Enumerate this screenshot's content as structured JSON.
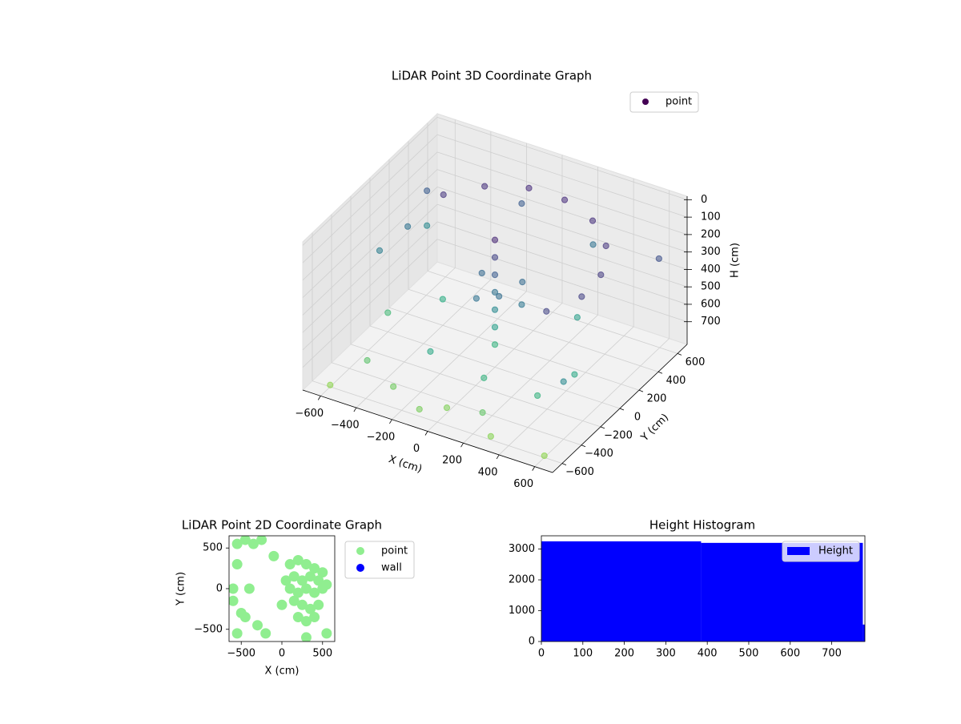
{
  "chart_data": [
    {
      "type": "scatter3d",
      "title": "LiDAR Point 3D Coordinate Graph",
      "xlabel": "X (cm)",
      "ylabel": "Y (cm)",
      "zlabel": "H (cm)",
      "xlim": [
        -700,
        700
      ],
      "ylim": [
        -700,
        700
      ],
      "zlim": [
        -20,
        830
      ],
      "z_inverted": true,
      "xticks": [
        {
          "value": -600,
          "label": "−600"
        },
        {
          "value": -400,
          "label": "−400"
        },
        {
          "value": -200,
          "label": "−200"
        },
        0,
        200,
        400,
        600
      ],
      "yticks": [
        {
          "value": -600,
          "label": "−600"
        },
        {
          "value": -400,
          "label": "−400"
        },
        {
          "value": -200,
          "label": "−200"
        },
        0,
        200,
        400,
        600
      ],
      "zticks": [
        0,
        100,
        200,
        300,
        400,
        500,
        600,
        700
      ],
      "grid": true,
      "legend": "upper right",
      "colormap": [
        "#440154",
        "#472d7b",
        "#3b528b",
        "#2c728e",
        "#21918c",
        "#28ae80",
        "#90d743"
      ],
      "series": [
        {
          "name": "point",
          "color": "#440154",
          "x": [
            -450,
            -300,
            -100,
            100,
            300,
            450,
            540,
            540,
            450,
            0,
            0,
            0,
            0,
            0,
            0,
            0,
            -100,
            50,
            100,
            -50,
            150,
            -500,
            -300,
            -100,
            200,
            400,
            500,
            -600,
            -400,
            300,
            -200,
            100,
            0,
            -600,
            600,
            300,
            -650,
            -650,
            -650,
            -700,
            650,
            600,
            -200,
            200
          ],
          "y": [
            300,
            450,
            540,
            540,
            460,
            320,
            100,
            -100,
            -300,
            0,
            0,
            0,
            0,
            0,
            0,
            0,
            50,
            -50,
            100,
            -100,
            0,
            -400,
            -500,
            -600,
            -500,
            -300,
            -100,
            0,
            200,
            300,
            -300,
            -300,
            -500,
            -600,
            -600,
            -600,
            500,
            500,
            300,
            100,
            500,
            -400,
            650,
            650
          ],
          "z": [
            150,
            130,
            120,
            120,
            130,
            150,
            170,
            190,
            200,
            100,
            200,
            300,
            400,
            500,
            600,
            700,
            350,
            380,
            360,
            400,
            420,
            750,
            780,
            790,
            760,
            700,
            650,
            720,
            680,
            600,
            650,
            700,
            800,
            820,
            820,
            810,
            300,
            500,
            400,
            450,
            250,
            500,
            300,
            400
          ]
        }
      ]
    },
    {
      "type": "scatter",
      "title": "LiDAR Point 2D Coordinate Graph",
      "xlabel": "X (cm)",
      "ylabel": "Y (cm)",
      "xlim": [
        -650,
        650
      ],
      "ylim": [
        -650,
        650
      ],
      "xticks": [
        {
          "value": -500,
          "label": "−500"
        },
        0,
        500
      ],
      "yticks": [
        {
          "value": -500,
          "label": "−500"
        },
        0,
        500
      ],
      "legend": "outside right",
      "series": [
        {
          "name": "point",
          "color": "#90ee90",
          "x": [
            100,
            200,
            300,
            400,
            500,
            150,
            250,
            350,
            450,
            550,
            100,
            200,
            300,
            400,
            500,
            150,
            250,
            350,
            450,
            200,
            300,
            400,
            0,
            50,
            -550,
            -450,
            -350,
            -250,
            -550,
            -600,
            -500,
            -300,
            -200,
            -550,
            -450,
            -100,
            -600,
            -400,
            300,
            550
          ],
          "y": [
            300,
            350,
            300,
            250,
            200,
            150,
            100,
            150,
            100,
            50,
            0,
            -50,
            0,
            -50,
            0,
            -150,
            -200,
            -250,
            -200,
            -350,
            -400,
            -350,
            -200,
            100,
            550,
            600,
            550,
            600,
            300,
            -150,
            -300,
            -450,
            -550,
            -550,
            -350,
            400,
            0,
            0,
            -600,
            -550
          ]
        },
        {
          "name": "wall",
          "color": "#0000ff",
          "x": [],
          "y": []
        }
      ]
    },
    {
      "type": "histogram",
      "title": "Height Histogram",
      "xlim": [
        0,
        780
      ],
      "ylim": [
        0,
        3430
      ],
      "xticks": [
        0,
        100,
        200,
        300,
        400,
        500,
        600,
        700
      ],
      "yticks": [
        0,
        1000,
        2000,
        3000
      ],
      "legend": "upper right",
      "series": [
        {
          "name": "Height",
          "color": "#0000ff",
          "bins": [
            0,
            385,
            775,
            780
          ],
          "counts": [
            3250,
            3200,
            550
          ]
        }
      ]
    }
  ]
}
